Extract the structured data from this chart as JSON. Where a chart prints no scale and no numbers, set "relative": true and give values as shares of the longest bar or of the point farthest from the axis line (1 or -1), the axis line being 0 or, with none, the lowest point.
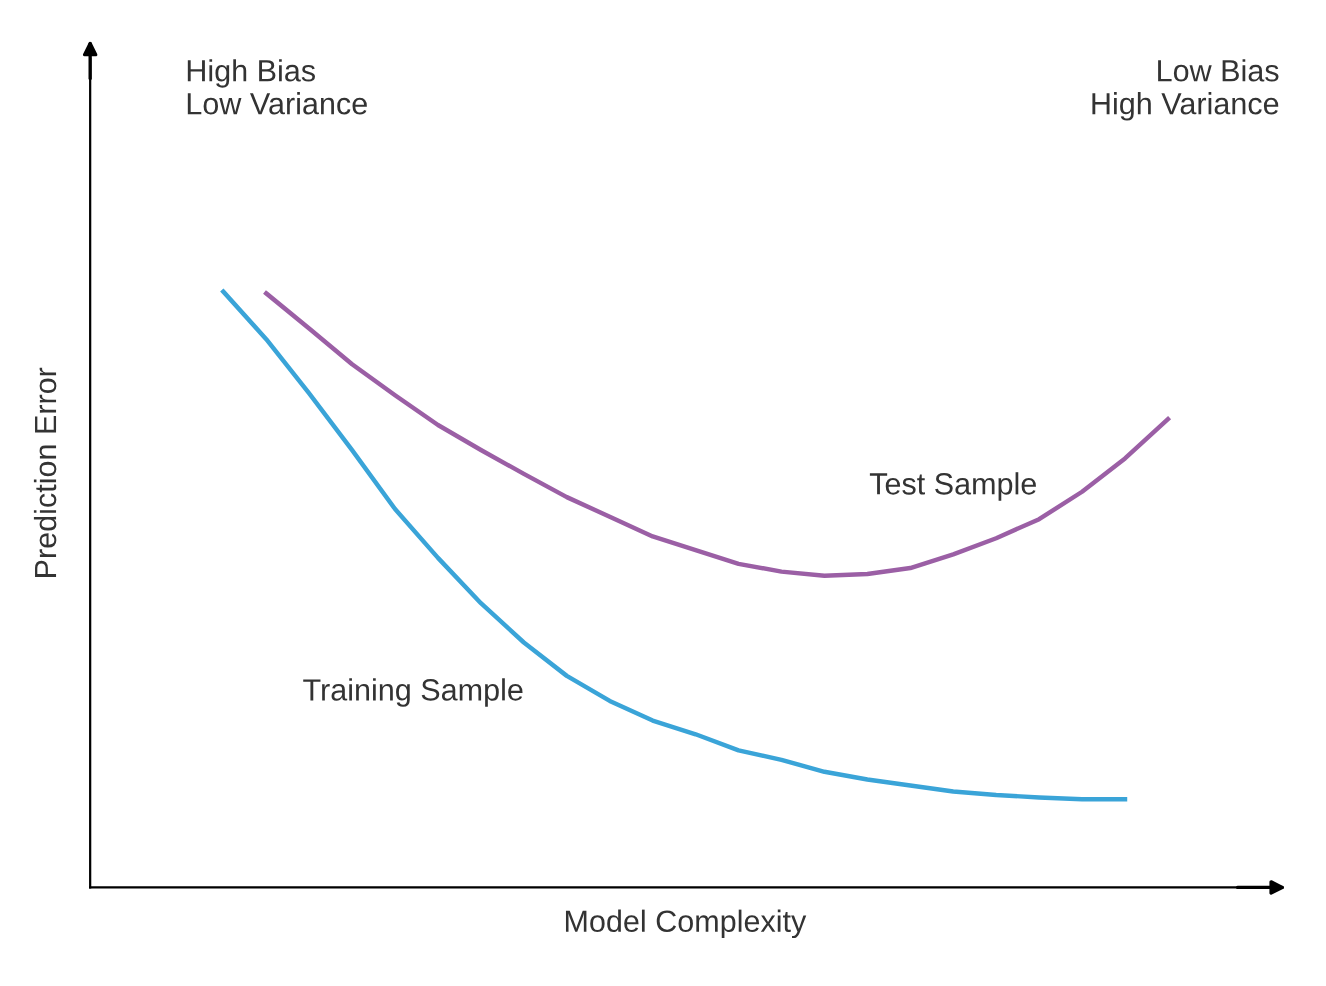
{
  "chart_data": {
    "type": "line",
    "relative": true,
    "xlabel": "Model Complexity",
    "ylabel": "Prediction Error",
    "annotations": [
      "High Bias\nLow Variance",
      "Low Bias\nHigh Variance"
    ],
    "categories": [
      null,
      null,
      null,
      null,
      null,
      null,
      null,
      null,
      null,
      null,
      null,
      null,
      null,
      null,
      null,
      null,
      null,
      null,
      null,
      null,
      null,
      null,
      null
    ],
    "series": [
      {
        "name": "Training Sample",
        "color": "#3aa4d8",
        "values": [
          1.0,
          0.92,
          0.829,
          0.734,
          0.635,
          0.553,
          0.477,
          0.411,
          0.355,
          0.313,
          0.28,
          0.257,
          0.23,
          0.214,
          0.194,
          0.181,
          0.171,
          0.161,
          0.155,
          0.151,
          0.148,
          0.148,
          null
        ]
      },
      {
        "name": "Test Sample",
        "color": "#9b5fa5",
        "values": [
          null,
          0.997,
          0.938,
          0.878,
          0.826,
          0.776,
          0.734,
          0.694,
          0.655,
          0.622,
          0.589,
          0.566,
          0.543,
          0.53,
          0.523,
          0.526,
          0.536,
          0.559,
          0.586,
          0.618,
          0.664,
          0.72,
          0.786
        ]
      }
    ],
    "legend": false,
    "marker": "none",
    "line_style": "solid"
  }
}
